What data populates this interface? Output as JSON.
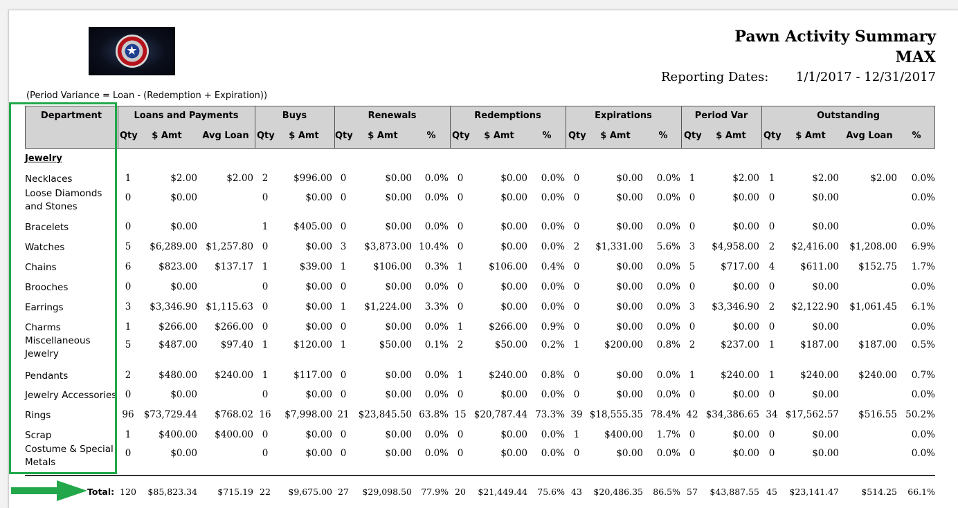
{
  "report": {
    "title": "Pawn Activity Summary",
    "store": "MAX",
    "dates_label": "Reporting Dates:",
    "dates_value": "1/1/2017 - 12/31/2017",
    "note": "(Period Variance = Loan - (Redemption + Expiration))",
    "logo_icon": "shield-star-logo"
  },
  "groups": [
    "Department",
    "Loans and Payments",
    "Buys",
    "Renewals",
    "Redemptions",
    "Expirations",
    "Period Var",
    "Outstanding"
  ],
  "subheaders": [
    "Qty",
    "$ Amt",
    "Avg Loan",
    "Qty",
    "$ Amt",
    "Qty",
    "$ Amt",
    "%",
    "Qty",
    "$ Amt",
    "%",
    "Qty",
    "$ Amt",
    "%",
    "Qty",
    "$ Amt",
    "Qty",
    "$ Amt",
    "Avg Loan",
    "%"
  ],
  "section": "Jewelry",
  "rows": [
    {
      "dept": "Necklaces",
      "v": [
        "1",
        "$2.00",
        "$2.00",
        "2",
        "$996.00",
        "0",
        "$0.00",
        "0.0%",
        "0",
        "$0.00",
        "0.0%",
        "0",
        "$0.00",
        "0.0%",
        "1",
        "$2.00",
        "1",
        "$2.00",
        "$2.00",
        "0.0%"
      ]
    },
    {
      "dept": "Loose Diamonds and Stones",
      "v": [
        "0",
        "$0.00",
        "",
        "0",
        "$0.00",
        "0",
        "$0.00",
        "0.0%",
        "0",
        "$0.00",
        "0.0%",
        "0",
        "$0.00",
        "0.0%",
        "0",
        "$0.00",
        "0",
        "$0.00",
        "",
        "0.0%"
      ]
    },
    {
      "dept": "Bracelets",
      "v": [
        "0",
        "$0.00",
        "",
        "1",
        "$405.00",
        "0",
        "$0.00",
        "0.0%",
        "0",
        "$0.00",
        "0.0%",
        "0",
        "$0.00",
        "0.0%",
        "0",
        "$0.00",
        "0",
        "$0.00",
        "",
        "0.0%"
      ]
    },
    {
      "dept": "Watches",
      "v": [
        "5",
        "$6,289.00",
        "$1,257.80",
        "0",
        "$0.00",
        "3",
        "$3,873.00",
        "10.4%",
        "0",
        "$0.00",
        "0.0%",
        "2",
        "$1,331.00",
        "5.6%",
        "3",
        "$4,958.00",
        "2",
        "$2,416.00",
        "$1,208.00",
        "6.9%"
      ]
    },
    {
      "dept": "Chains",
      "v": [
        "6",
        "$823.00",
        "$137.17",
        "1",
        "$39.00",
        "1",
        "$106.00",
        "0.3%",
        "1",
        "$106.00",
        "0.4%",
        "0",
        "$0.00",
        "0.0%",
        "5",
        "$717.00",
        "4",
        "$611.00",
        "$152.75",
        "1.7%"
      ]
    },
    {
      "dept": "Brooches",
      "v": [
        "0",
        "$0.00",
        "",
        "0",
        "$0.00",
        "0",
        "$0.00",
        "0.0%",
        "0",
        "$0.00",
        "0.0%",
        "0",
        "$0.00",
        "0.0%",
        "0",
        "$0.00",
        "0",
        "$0.00",
        "",
        "0.0%"
      ]
    },
    {
      "dept": "Earrings",
      "v": [
        "3",
        "$3,346.90",
        "$1,115.63",
        "0",
        "$0.00",
        "1",
        "$1,224.00",
        "3.3%",
        "0",
        "$0.00",
        "0.0%",
        "0",
        "$0.00",
        "0.0%",
        "3",
        "$3,346.90",
        "2",
        "$2,122.90",
        "$1,061.45",
        "6.1%"
      ]
    },
    {
      "dept": "Charms",
      "v": [
        "1",
        "$266.00",
        "$266.00",
        "0",
        "$0.00",
        "0",
        "$0.00",
        "0.0%",
        "1",
        "$266.00",
        "0.9%",
        "0",
        "$0.00",
        "0.0%",
        "0",
        "$0.00",
        "0",
        "$0.00",
        "",
        "0.0%"
      ]
    },
    {
      "dept": "Miscellaneous Jewelry",
      "v": [
        "5",
        "$487.00",
        "$97.40",
        "1",
        "$120.00",
        "1",
        "$50.00",
        "0.1%",
        "2",
        "$50.00",
        "0.2%",
        "1",
        "$200.00",
        "0.8%",
        "2",
        "$237.00",
        "1",
        "$187.00",
        "$187.00",
        "0.5%"
      ]
    },
    {
      "dept": "Pendants",
      "v": [
        "2",
        "$480.00",
        "$240.00",
        "1",
        "$117.00",
        "0",
        "$0.00",
        "0.0%",
        "1",
        "$240.00",
        "0.8%",
        "0",
        "$0.00",
        "0.0%",
        "1",
        "$240.00",
        "1",
        "$240.00",
        "$240.00",
        "0.7%"
      ]
    },
    {
      "dept": "Jewelry Accessories",
      "v": [
        "0",
        "$0.00",
        "",
        "0",
        "$0.00",
        "0",
        "$0.00",
        "0.0%",
        "0",
        "$0.00",
        "0.0%",
        "0",
        "$0.00",
        "0.0%",
        "0",
        "$0.00",
        "0",
        "$0.00",
        "",
        "0.0%"
      ]
    },
    {
      "dept": "Rings",
      "v": [
        "96",
        "$73,729.44",
        "$768.02",
        "16",
        "$7,998.00",
        "21",
        "$23,845.50",
        "63.8%",
        "15",
        "$20,787.44",
        "73.3%",
        "39",
        "$18,555.35",
        "78.4%",
        "42",
        "$34,386.65",
        "34",
        "$17,562.57",
        "$516.55",
        "50.2%"
      ]
    },
    {
      "dept": "Scrap",
      "v": [
        "1",
        "$400.00",
        "$400.00",
        "0",
        "$0.00",
        "0",
        "$0.00",
        "0.0%",
        "0",
        "$0.00",
        "0.0%",
        "1",
        "$400.00",
        "1.7%",
        "0",
        "$0.00",
        "0",
        "$0.00",
        "",
        "0.0%"
      ]
    },
    {
      "dept": "Costume & Special Metals",
      "v": [
        "0",
        "$0.00",
        "",
        "0",
        "$0.00",
        "0",
        "$0.00",
        "0.0%",
        "0",
        "$0.00",
        "0.0%",
        "0",
        "$0.00",
        "0.0%",
        "0",
        "$0.00",
        "0",
        "$0.00",
        "",
        "0.0%"
      ]
    }
  ],
  "total": {
    "label": "Total:",
    "v": [
      "120",
      "$85,823.34",
      "$715.19",
      "22",
      "$9,675.00",
      "27",
      "$29,098.50",
      "77.9%",
      "20",
      "$21,449.44",
      "75.6%",
      "43",
      "$20,486.35",
      "86.5%",
      "57",
      "$43,887.55",
      "45",
      "$23,141.47",
      "$514.25",
      "66.1%"
    ]
  },
  "annotation": {
    "box_color": "#22a84a",
    "arrow_color": "#22a84a"
  }
}
